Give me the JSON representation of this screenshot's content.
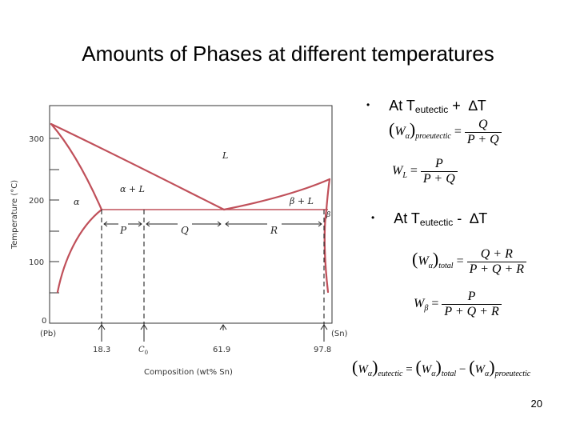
{
  "slide": {
    "title": "Amounts of Phases at different temperatures",
    "page_number": "20"
  },
  "diagram": {
    "y_axis_label": "Temperature (°C)",
    "x_axis_label": "Composition (wt% Sn)",
    "y_ticks": [
      "300",
      "200",
      "100",
      "0"
    ],
    "end_labels": [
      "(Pb)",
      "(Sn)"
    ],
    "compositions": [
      "18.3",
      "C",
      "0",
      "61.9",
      "97.8"
    ],
    "region_labels": [
      "L",
      "α + L",
      "α",
      "β + L",
      "β"
    ],
    "segment_labels": [
      "P",
      "Q",
      "R"
    ],
    "line_color": "#c0505a"
  },
  "bullets": {
    "above": {
      "prefix": "At T",
      "sub": "eutectic",
      "suffix": " +  ∆T"
    },
    "below": {
      "prefix": "At T",
      "sub": "eutectic",
      "suffix": " -  ∆T"
    },
    "bullet_glyph": "•"
  },
  "equations": {
    "w_alpha_pro": {
      "W": "W",
      "sub": "α",
      "outer_sub": "proeutectic",
      "eq": "=",
      "num": "Q",
      "den": "P + Q"
    },
    "w_l": {
      "W": "W",
      "sub": "L",
      "eq": "=",
      "num": "P",
      "den": "P + Q"
    },
    "w_alpha_total": {
      "W": "W",
      "sub": "α",
      "outer_sub": "total",
      "eq": "=",
      "num": "Q + R",
      "den": "P + Q + R"
    },
    "w_beta": {
      "W": "W",
      "sub": "β",
      "eq": "=",
      "num": "P",
      "den": "P + Q + R"
    },
    "w_alpha_eut": {
      "W": "W",
      "sub": "α",
      "outer_sub1": "eutectic",
      "outer_sub2": "total",
      "outer_sub3": "proeutectic",
      "eq": "=",
      "minus": "−"
    }
  }
}
